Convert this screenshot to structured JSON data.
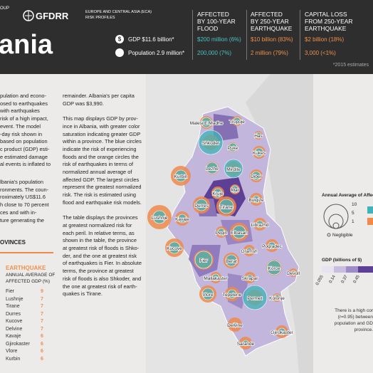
{
  "header": {
    "group_fragment": "OUP",
    "logo": "GFDRR",
    "series_title": [
      "EUROPE AND CENTRAL ASIA (ECA)",
      "RISK PROFILES"
    ],
    "title": "ania",
    "gdp": "GDP $11.6 billion*",
    "population": "Population 2.9 million*",
    "columns": [
      {
        "heading": [
          "AFFECTED",
          "BY 100-YEAR",
          "FLOOD"
        ],
        "value_money": "$200 million (6%)",
        "value_people": "200,000 (7%)"
      },
      {
        "heading": [
          "AFFECTED",
          "BY 250-YEAR",
          "EARTHQUAKE"
        ],
        "value_money": "$10 billion (83%)",
        "value_people": "2 million (79%)"
      },
      {
        "heading": [
          "CAPITAL LOSS",
          "FROM 250-YEAR",
          "EARTHQUAKE"
        ],
        "value_money": "$2 billion (18%)",
        "value_people": "3,000 (<1%)"
      }
    ],
    "footnote": "*2015 estimates"
  },
  "text_left": [
    "pulation and econo-",
    "osed to earthquakes",
    "with earthquakes",
    "risk of a high impact,",
    "event. The model",
    "-day risk shown in",
    "based on population",
    "c product (GDP) esti-",
    "e estimated damage",
    "al events is inflated to"
  ],
  "text_left2": [
    "lbania's population",
    "ronments. The coun-",
    "roximately US$11.6",
    "h close to 70 percent",
    "ces and with in-",
    "ture generating the"
  ],
  "text_mid": [
    [
      "remainder. Albania's per capita",
      "GDP was $3,990."
    ],
    [
      "This map displays GDP by prov-",
      "ince in Albania, with greater color",
      "saturation indicating greater GDP",
      "within a province. The blue circles",
      "indicate the risk of experiencing",
      "floods and the orange circles the",
      "risk of earthquakes in terms of",
      "normalized annual average of",
      "affected GDP. The largest circles",
      "represent the greatest normalized",
      "risk. The risk is estimated using",
      "flood and earthquake risk models."
    ],
    [
      "The table displays the provinces",
      "at greatest normalized risk for",
      "each peril. In relative terms, as",
      "shown in the table, the province",
      "at greatest risk of floods is Shko-",
      "der, and the one at greatest risk",
      "of earthquakes is Fier. In absolute",
      "terms, the province at greatest",
      "risk of floods is also Shkoder, and",
      "the one at greatest risk of earth-",
      "quakes is Tirane."
    ]
  ],
  "table": {
    "title": "OVINCES",
    "peril": "EARTHQUAKE",
    "column": [
      "ANNUAL AVERAGE OF",
      "AFFECTED GDP (%)"
    ],
    "rows": [
      [
        "Fier",
        "9"
      ],
      [
        "Lushnje",
        "7"
      ],
      [
        "Tirane",
        "7"
      ],
      [
        "Durres",
        "7"
      ],
      [
        "Kucove",
        "7"
      ],
      [
        "Delvine",
        "7"
      ],
      [
        "Kavaje",
        "6"
      ],
      [
        "Gjirokaster",
        "6"
      ],
      [
        "Vlore",
        "6"
      ],
      [
        "Kurbin",
        "6"
      ]
    ]
  },
  "map": {
    "provinces": [
      "Malesi E Madhe",
      "Tropoje",
      "Has",
      "Shkoder",
      "Puke",
      "Kukes",
      "Lezhe",
      "Mirdite",
      "Diber",
      "Kurbin",
      "Kruje",
      "Mat",
      "Durres",
      "Tirane",
      "Bulqize",
      "Kavaje",
      "Lushnje",
      "Peqin",
      "Elbasan",
      "Librazhd",
      "Kucove",
      "Gramsh",
      "Pogradec",
      "Fier",
      "Berat",
      "Korce",
      "Mallakaster",
      "Skrapar",
      "Devoll",
      "Vlore",
      "Tepelene",
      "Permet",
      "Kolonje",
      "Delvine",
      "Gjirokaster",
      "Sarande"
    ]
  },
  "legend": {
    "risk_title": "Annual Average of Affecte",
    "risk_sizes": [
      "10",
      "5",
      "1"
    ],
    "negligible": "Negligible",
    "gdp_title": "GDP (billions of $)",
    "gdp_ticks": [
      "0.055",
      "0.14",
      "0.37",
      "0.45"
    ]
  },
  "note": [
    "There is a high cor",
    "(r=0.95) between",
    "population and GD",
    "province."
  ]
}
